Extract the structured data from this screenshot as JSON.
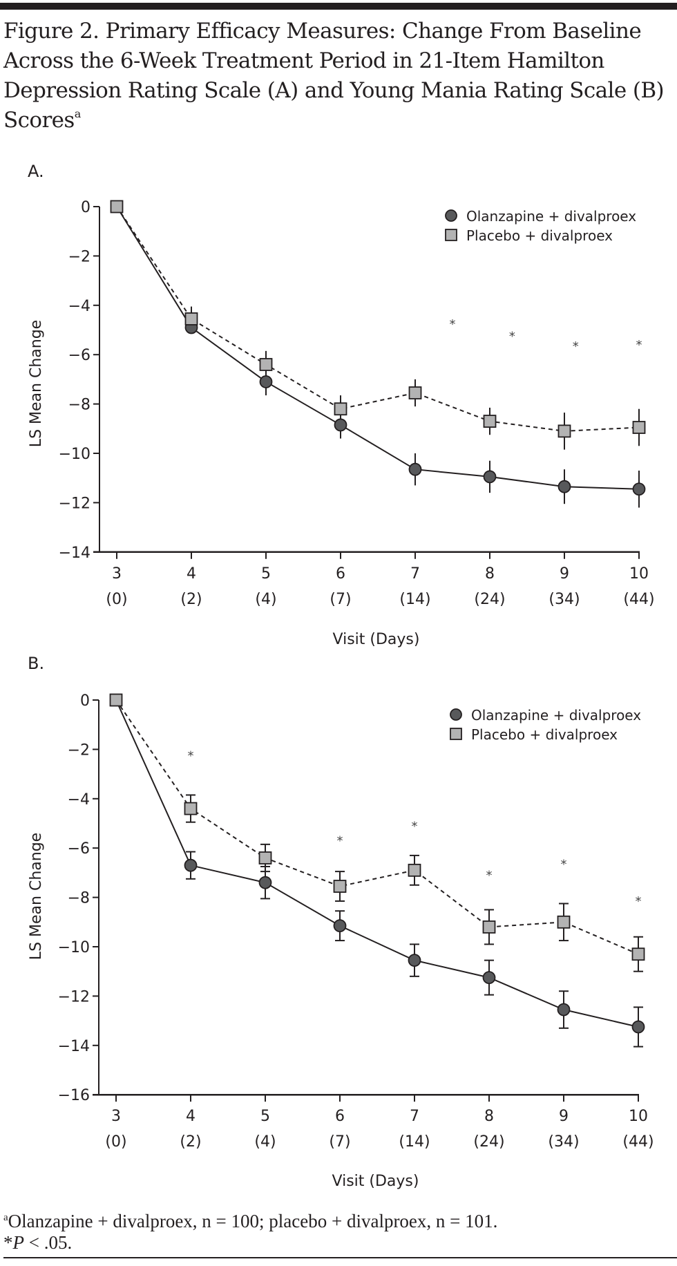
{
  "figure": {
    "title": "Figure 2. Primary Efficacy Measures: Change From Baseline Across the 6-Week Treatment Period in 21-Item Hamilton Depression Rating Scale (A) and Young Mania Rating Scale (B) Scores",
    "title_sup": "a",
    "footnote_line1_sup": "a",
    "footnote_line1": "Olanzapine + divalproex, n = 100; placebo + divalproex, n = 101.",
    "footnote_line2_star": "*",
    "footnote_line2_p": "P",
    "footnote_line2_rest": " < .05."
  },
  "chart_data": [
    {
      "type": "line",
      "panel_label": "A.",
      "title": "",
      "xlabel": "Visit (Days)",
      "ylabel": "LS Mean Change",
      "ylim": [
        -14,
        0
      ],
      "yticks": [
        0,
        -2,
        -4,
        -6,
        -8,
        -10,
        -12,
        -14
      ],
      "ytick_labels": [
        "0",
        "−2",
        "−4",
        "−6",
        "−8",
        "−10",
        "−12",
        "−14"
      ],
      "x": [
        3,
        4,
        5,
        6,
        7,
        8,
        9,
        10
      ],
      "xtick_labels": [
        "3",
        "4",
        "5",
        "6",
        "7",
        "8",
        "9",
        "10"
      ],
      "xtick_sublabels": [
        "(0)",
        "(2)",
        "(4)",
        "(7)",
        "(14)",
        "(24)",
        "(34)",
        "(44)"
      ],
      "legend_position": "top-right",
      "grid": false,
      "series": [
        {
          "name": "Olanzapine + divalproex",
          "marker": "circle",
          "line": "solid",
          "color": "#58595b",
          "values": [
            0,
            -4.9,
            -7.1,
            -8.85,
            -10.65,
            -10.95,
            -11.35,
            -11.45
          ],
          "error": [
            0,
            0,
            0.55,
            0.55,
            0.65,
            0.65,
            0.7,
            0.75
          ]
        },
        {
          "name": "Placebo + divalproex",
          "marker": "square",
          "line": "dashed",
          "color": "#b3b3b3",
          "values": [
            0,
            -4.55,
            -6.4,
            -8.2,
            -7.55,
            -8.7,
            -9.1,
            -8.95
          ],
          "error": [
            0,
            0.5,
            0.55,
            0.55,
            0.55,
            0.55,
            0.75,
            0.75
          ]
        }
      ],
      "significance_markers": [
        {
          "x": 7.5,
          "y": -4.7,
          "label": "*"
        },
        {
          "x": 8.3,
          "y": -5.2,
          "label": "*"
        },
        {
          "x": 9.15,
          "y": -5.6,
          "label": "*"
        },
        {
          "x": 10,
          "y": -5.55,
          "label": "*"
        }
      ]
    },
    {
      "type": "line",
      "panel_label": "B.",
      "title": "",
      "xlabel": "Visit (Days)",
      "ylabel": "LS Mean Change",
      "ylim": [
        -16,
        0
      ],
      "yticks": [
        0,
        -2,
        -4,
        -6,
        -8,
        -10,
        -12,
        -14,
        -16
      ],
      "ytick_labels": [
        "0",
        "−2",
        "−4",
        "−6",
        "−8",
        "−10",
        "−12",
        "−14",
        "−16"
      ],
      "x": [
        3,
        4,
        5,
        6,
        7,
        8,
        9,
        10
      ],
      "xtick_labels": [
        "3",
        "4",
        "5",
        "6",
        "7",
        "8",
        "9",
        "10"
      ],
      "xtick_sublabels": [
        "(0)",
        "(2)",
        "(4)",
        "(7)",
        "(14)",
        "(24)",
        "(34)",
        "(44)"
      ],
      "legend_position": "top-right",
      "grid": false,
      "series": [
        {
          "name": "Olanzapine + divalproex",
          "marker": "circle",
          "line": "solid",
          "color": "#58595b",
          "values": [
            0,
            -6.7,
            -7.4,
            -9.15,
            -10.55,
            -11.25,
            -12.55,
            -13.25
          ],
          "error": [
            0,
            0.55,
            0.65,
            0.6,
            0.65,
            0.7,
            0.75,
            0.8
          ]
        },
        {
          "name": "Placebo + divalproex",
          "marker": "square",
          "line": "dashed",
          "color": "#b3b3b3",
          "values": [
            0,
            -4.4,
            -6.4,
            -7.55,
            -6.9,
            -9.2,
            -9.0,
            -10.3
          ],
          "error": [
            0,
            0.55,
            0.55,
            0.6,
            0.6,
            0.7,
            0.75,
            0.7
          ]
        }
      ],
      "significance_markers": [
        {
          "x": 4,
          "y": -2.2,
          "label": "*"
        },
        {
          "x": 6,
          "y": -5.65,
          "label": "*"
        },
        {
          "x": 7,
          "y": -5.05,
          "label": "*"
        },
        {
          "x": 8,
          "y": -7.05,
          "label": "*"
        },
        {
          "x": 9,
          "y": -6.6,
          "label": "*"
        },
        {
          "x": 10,
          "y": -8.1,
          "label": "*"
        }
      ]
    }
  ]
}
